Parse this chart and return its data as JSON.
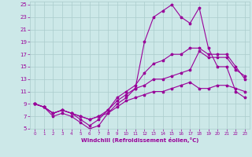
{
  "xlabel": "Windchill (Refroidissement éolien,°C)",
  "background_color": "#cce8e8",
  "grid_color": "#aacccc",
  "line_color": "#990099",
  "xlim": [
    -0.5,
    23.5
  ],
  "ylim": [
    5,
    25.5
  ],
  "yticks": [
    5,
    7,
    9,
    11,
    13,
    15,
    17,
    19,
    21,
    23,
    25
  ],
  "xticks": [
    0,
    1,
    2,
    3,
    4,
    5,
    6,
    7,
    8,
    9,
    10,
    11,
    12,
    13,
    14,
    15,
    16,
    17,
    18,
    19,
    20,
    21,
    22,
    23
  ],
  "line1_x": [
    0,
    1,
    2,
    3,
    4,
    5,
    6,
    7,
    8,
    9,
    10,
    11,
    12,
    13,
    14,
    15,
    16,
    17,
    18,
    19,
    20,
    21,
    22,
    23
  ],
  "line1_y": [
    9,
    8.5,
    7,
    7.5,
    7,
    6,
    5,
    5.5,
    7.5,
    9,
    10,
    11.5,
    19,
    23,
    24,
    25,
    23,
    22,
    24.5,
    18,
    15,
    15,
    11,
    10
  ],
  "line2_x": [
    0,
    1,
    2,
    3,
    4,
    5,
    6,
    7,
    8,
    9,
    10,
    11,
    12,
    13,
    14,
    15,
    16,
    17,
    18,
    19,
    20,
    21,
    22,
    23
  ],
  "line2_y": [
    9,
    8.5,
    7.5,
    8,
    7.5,
    6.5,
    5.5,
    6.5,
    8,
    10,
    11,
    12,
    14,
    15.5,
    16,
    17,
    17,
    18,
    18,
    17,
    17,
    17,
    15,
    13
  ],
  "line3_x": [
    0,
    1,
    2,
    3,
    4,
    5,
    6,
    7,
    8,
    9,
    10,
    11,
    12,
    13,
    14,
    15,
    16,
    17,
    18,
    19,
    20,
    21,
    22,
    23
  ],
  "line3_y": [
    9,
    8.5,
    7.5,
    8,
    7.5,
    7,
    6.5,
    7,
    8,
    9.5,
    10.5,
    11.5,
    12,
    13,
    13,
    13.5,
    14,
    14.5,
    17.5,
    16.5,
    16.5,
    16.5,
    14.5,
    13.5
  ],
  "line4_x": [
    0,
    1,
    2,
    3,
    4,
    5,
    6,
    7,
    8,
    9,
    10,
    11,
    12,
    13,
    14,
    15,
    16,
    17,
    18,
    19,
    20,
    21,
    22,
    23
  ],
  "line4_y": [
    9,
    8.5,
    7.5,
    8,
    7.5,
    7,
    6.5,
    7,
    7.5,
    8.5,
    9.5,
    10,
    10.5,
    11,
    11,
    11.5,
    12,
    12.5,
    11.5,
    11.5,
    12,
    12,
    11.5,
    11
  ]
}
